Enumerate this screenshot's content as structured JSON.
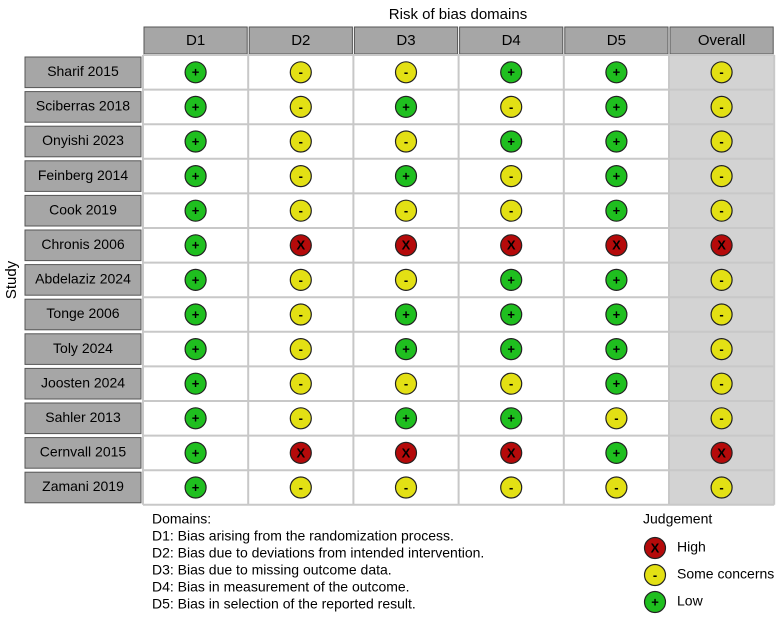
{
  "title": "Risk of bias domains",
  "y_label": "Study",
  "columns": [
    "D1",
    "D2",
    "D3",
    "D4",
    "D5",
    "Overall"
  ],
  "rows": [
    {
      "study": "Sharif 2015",
      "judgements": [
        "+",
        "-",
        "-",
        "+",
        "+",
        "-"
      ]
    },
    {
      "study": "Sciberras 2018",
      "judgements": [
        "+",
        "-",
        "+",
        "-",
        "+",
        "-"
      ]
    },
    {
      "study": "Onyishi 2023",
      "judgements": [
        "+",
        "-",
        "-",
        "+",
        "+",
        "-"
      ]
    },
    {
      "study": "Feinberg 2014",
      "judgements": [
        "+",
        "-",
        "+",
        "-",
        "+",
        "-"
      ]
    },
    {
      "study": "Cook 2019",
      "judgements": [
        "+",
        "-",
        "-",
        "-",
        "+",
        "-"
      ]
    },
    {
      "study": "Chronis 2006",
      "judgements": [
        "+",
        "X",
        "X",
        "X",
        "X",
        "X"
      ]
    },
    {
      "study": "Abdelaziz 2024",
      "judgements": [
        "+",
        "-",
        "-",
        "+",
        "+",
        "-"
      ]
    },
    {
      "study": "Tonge 2006",
      "judgements": [
        "+",
        "-",
        "+",
        "+",
        "+",
        "-"
      ]
    },
    {
      "study": "Toly 2024",
      "judgements": [
        "+",
        "-",
        "+",
        "+",
        "+",
        "-"
      ]
    },
    {
      "study": "Joosten 2024",
      "judgements": [
        "+",
        "-",
        "-",
        "-",
        "+",
        "-"
      ]
    },
    {
      "study": "Sahler 2013",
      "judgements": [
        "+",
        "-",
        "+",
        "+",
        "-",
        "-"
      ]
    },
    {
      "study": "Cernvall 2015",
      "judgements": [
        "+",
        "X",
        "X",
        "X",
        "+",
        "X"
      ]
    },
    {
      "study": "Zamani 2019",
      "judgements": [
        "+",
        "-",
        "-",
        "-",
        "-",
        "-"
      ]
    }
  ],
  "domains": {
    "heading": "Domains:",
    "items": [
      "D1: Bias arising from the randomization process.",
      "D2: Bias due to deviations from intended intervention.",
      "D3: Bias due to missing outcome data.",
      "D4: Bias in measurement of the outcome.",
      "D5: Bias in selection of the reported result."
    ]
  },
  "legend": {
    "title": "Judgement",
    "items": [
      {
        "symbol": "X",
        "label": "High",
        "color": "#b50a0a"
      },
      {
        "symbol": "-",
        "label": "Some concerns",
        "color": "#e3e014"
      },
      {
        "symbol": "+",
        "label": "Low",
        "color": "#1fbf1f"
      }
    ]
  }
}
